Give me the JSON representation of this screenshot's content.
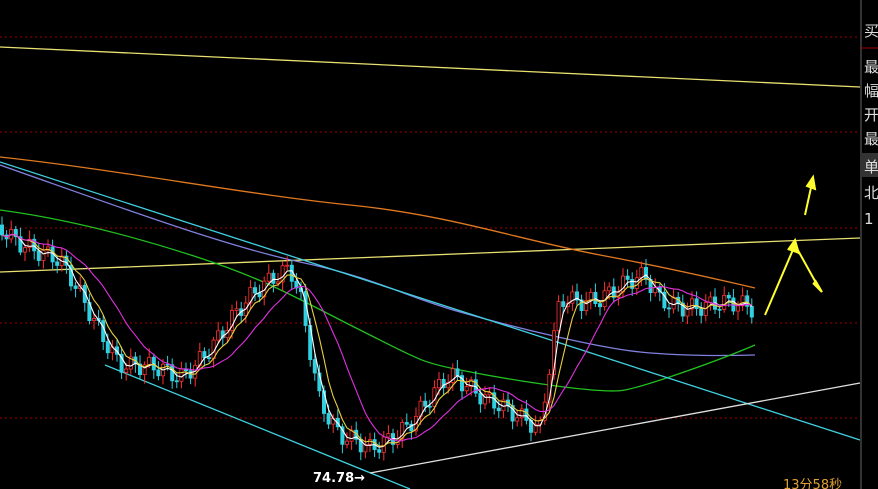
{
  "chart_panel": {
    "low_marker": "74.78→",
    "timer": "13分58秒"
  },
  "side_panel": {
    "items": [
      "买",
      "最",
      "幅",
      "开",
      "最",
      "单",
      "北",
      "1"
    ]
  }
}
